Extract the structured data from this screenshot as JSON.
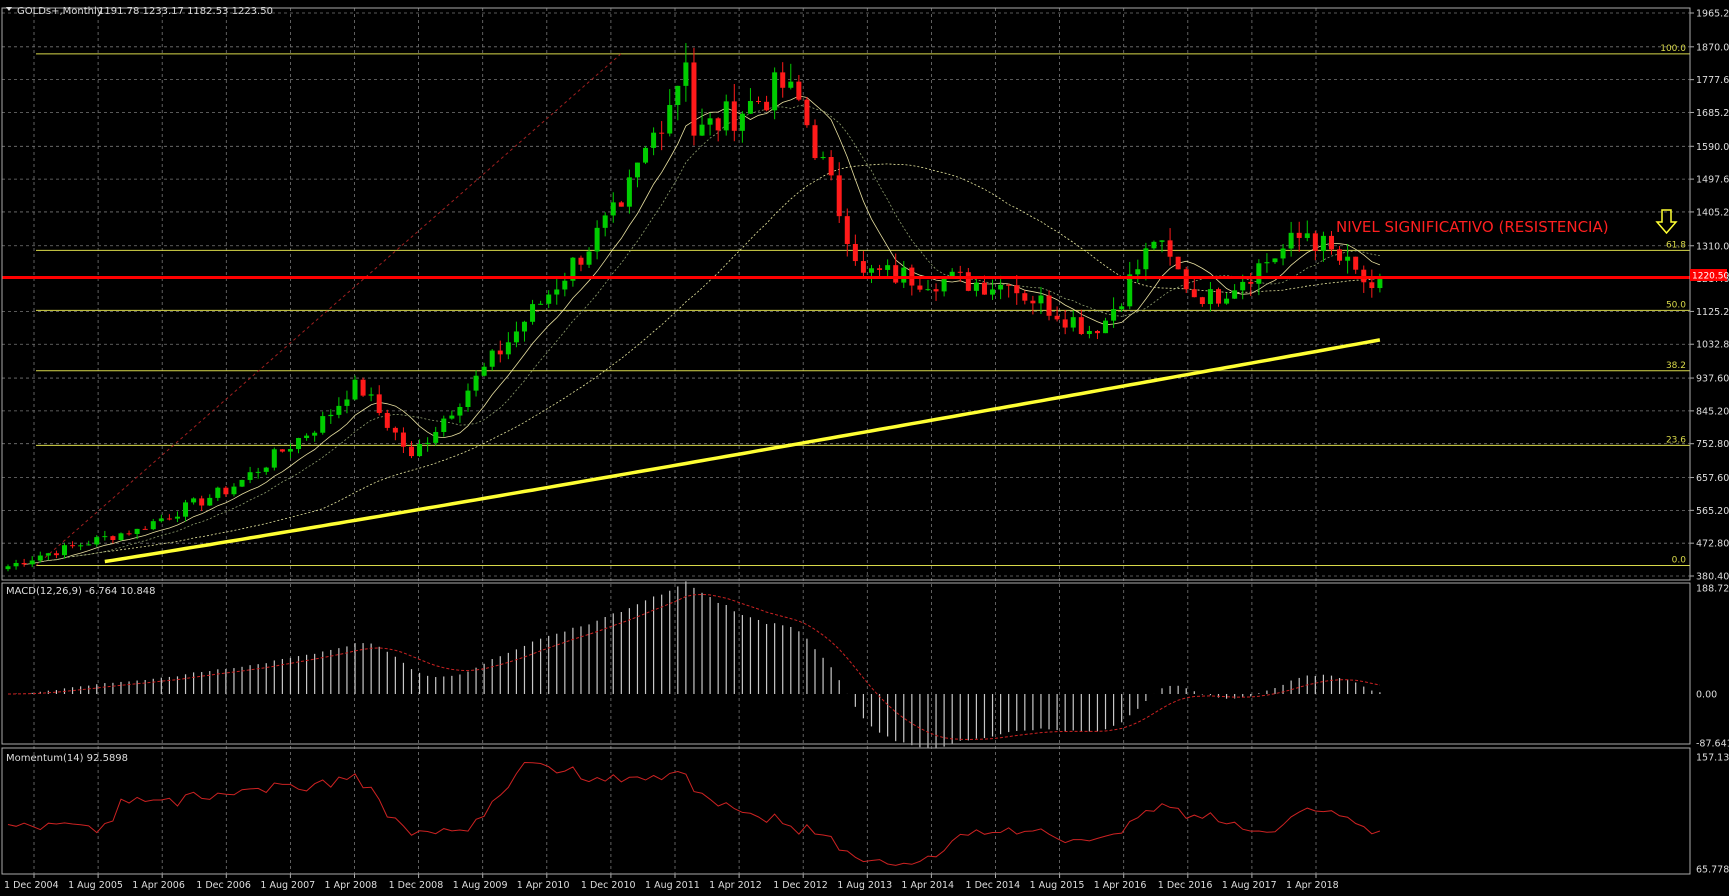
{
  "window": {
    "symbol_label": "GOLDs+,Monthly",
    "ohlc_label": "1191.78 1233.17 1182.53 1223.50",
    "menu_arrow_icon": "triangle-down-icon"
  },
  "colors": {
    "background": "#000000",
    "grid": "#777777",
    "bull": "#00cc00",
    "bear": "#ff1a1a",
    "fib": "#d8d84a",
    "sma_thick": "#ffff33",
    "resistance": "#ff0000",
    "indicator": "#c8c8c8",
    "signal": "#cc2222",
    "text": "#dddddd"
  },
  "annotations": {
    "resistance_text": "NIVEL SIGNIFICATIVO (RESISTENCIA)",
    "resistance_price": "1220.50",
    "arrow_icon": "arrow-down-outline-icon"
  },
  "main_axis": {
    "labels": [
      "1965.20",
      "1870.00",
      "1777.60",
      "1685.20",
      "1590.00",
      "1497.60",
      "1405.20",
      "1310.00",
      "1217.60",
      "1125.20",
      "1032.80",
      "937.60",
      "845.20",
      "752.80",
      "657.60",
      "565.20",
      "472.80",
      "380.40"
    ]
  },
  "fibonacci": [
    {
      "label": "100.0",
      "price": 1850
    },
    {
      "label": "61.8",
      "price": 1297
    },
    {
      "label": "50.0",
      "price": 1128
    },
    {
      "label": "38.2",
      "price": 958
    },
    {
      "label": "23.6",
      "price": 748
    },
    {
      "label": "0.0",
      "price": 410
    }
  ],
  "x_axis": {
    "labels": [
      "1 Dec 2004",
      "1 Aug 2005",
      "1 Apr 2006",
      "1 Dec 2006",
      "1 Aug 2007",
      "1 Apr 2008",
      "1 Dec 2008",
      "1 Aug 2009",
      "1 Apr 2010",
      "1 Dec 2010",
      "1 Aug 2011",
      "1 Apr 2012",
      "1 Dec 2012",
      "1 Aug 2013",
      "1 Apr 2014",
      "1 Dec 2014",
      "1 Aug 2015",
      "1 Apr 2016",
      "1 Dec 2016",
      "1 Aug 2017",
      "1 Apr 2018"
    ]
  },
  "macd": {
    "label": "MACD(12,26,9) -6.764 10.848",
    "axis_labels": [
      "188.726",
      "0.00",
      "-87.641"
    ]
  },
  "momentum": {
    "label": "Momentum(14) 92.5898",
    "axis_labels": [
      "157.134",
      "65.7784"
    ]
  },
  "chart_data": {
    "type": "candlestick",
    "timeframe": "Monthly",
    "start": "Aug 2004",
    "key_closes": [
      {
        "date": "Dec 2004",
        "value": 438
      },
      {
        "date": "Dec 2005",
        "value": 513
      },
      {
        "date": "Dec 2006",
        "value": 632
      },
      {
        "date": "Dec 2007",
        "value": 834
      },
      {
        "date": "Mar 2008",
        "value": 933
      },
      {
        "date": "Oct 2008",
        "value": 718
      },
      {
        "date": "Dec 2009",
        "value": 1096
      },
      {
        "date": "Dec 2010",
        "value": 1420
      },
      {
        "date": "Aug 2011",
        "value": 1826
      },
      {
        "date": "Sep 2011",
        "value": 1620
      },
      {
        "date": "Sep 2012",
        "value": 1772
      },
      {
        "date": "Jun 2013",
        "value": 1234
      },
      {
        "date": "Dec 2014",
        "value": 1199
      },
      {
        "date": "Nov 2015",
        "value": 1064
      },
      {
        "date": "Jun 2016",
        "value": 1321
      },
      {
        "date": "Dec 2016",
        "value": 1146
      },
      {
        "date": "Jan 2018",
        "value": 1345
      },
      {
        "date": "Sep 2018",
        "value": 1191
      },
      {
        "date": "Oct 2018",
        "value": 1223.5
      }
    ],
    "y_range": [
      380.4,
      1965.2
    ],
    "macd_range": [
      -87.641,
      188.726
    ],
    "momentum_range": [
      65.7784,
      157.134
    ]
  }
}
